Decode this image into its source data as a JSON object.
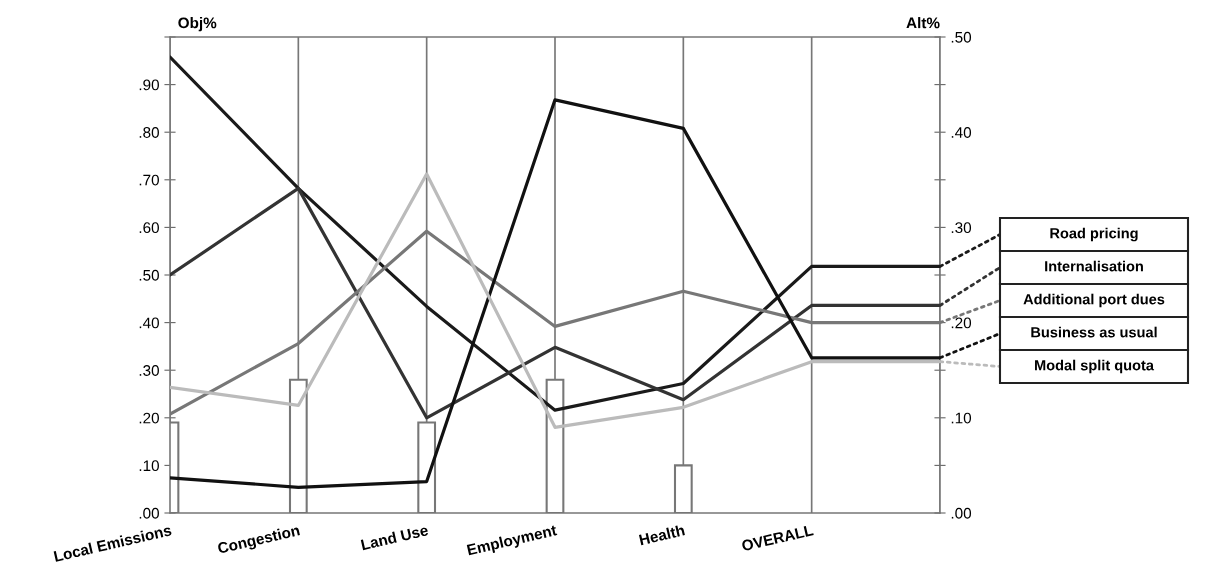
{
  "chart_data": {
    "type": "line",
    "categories": [
      "Local Emissions",
      "Congestion",
      "Land Use",
      "Employment",
      "Health",
      "OVERALL",
      null
    ],
    "ylabel": "Obj%",
    "y2label": "Alt%",
    "ylim": [
      0,
      1
    ],
    "yticks": [
      {
        "value": 0,
        "label": ".00"
      },
      {
        "value": 0.1,
        "label": ".10"
      },
      {
        "value": 0.2,
        "label": ".20"
      },
      {
        "value": 0.3,
        "label": ".30"
      },
      {
        "value": 0.4,
        "label": ".40"
      },
      {
        "value": 0.5,
        "label": ".50"
      },
      {
        "value": 0.6,
        "label": ".60"
      },
      {
        "value": 0.7,
        "label": ".70"
      },
      {
        "value": 0.8,
        "label": ".80"
      },
      {
        "value": 0.9,
        "label": ".90"
      },
      {
        "value": 1,
        "label": null
      }
    ],
    "y2lim": [
      0,
      0.5
    ],
    "y2ticks": [
      {
        "value": 0,
        "label": ".00"
      },
      {
        "value": 0.05,
        "label": null
      },
      {
        "value": 0.1,
        "label": ".10"
      },
      {
        "value": 0.15,
        "label": null
      },
      {
        "value": 0.2,
        "label": ".20"
      },
      {
        "value": 0.25,
        "label": null
      },
      {
        "value": 0.3,
        "label": ".30"
      },
      {
        "value": 0.35,
        "label": null
      },
      {
        "value": 0.4,
        "label": ".40"
      },
      {
        "value": 0.45,
        "label": null
      },
      {
        "value": 0.5,
        "label": ".50"
      }
    ],
    "grid": "x",
    "legend": "right",
    "marker": "none",
    "line_style": "solid",
    "series": [
      {
        "type": "bar",
        "color": "#ffffff",
        "values": [
          0.19,
          0.28,
          0.19,
          0.28,
          0.1,
          null,
          null
        ]
      },
      {
        "name": "Road pricing",
        "color": "#1a1a1a",
        "axis": "y2",
        "values": [
          0.479,
          0.341,
          0.217,
          0.108,
          0.136,
          0.259,
          0.259
        ]
      },
      {
        "name": "Internalisation",
        "color": "#333333",
        "axis": "y2",
        "values": [
          0.25,
          0.341,
          0.1,
          0.174,
          0.119,
          0.218,
          0.218
        ]
      },
      {
        "name": "Additional port dues",
        "color": "#777777",
        "axis": "y2",
        "values": [
          0.104,
          0.178,
          0.296,
          0.196,
          0.233,
          0.2,
          0.2
        ]
      },
      {
        "name": "Business as usual",
        "color": "#111111",
        "axis": "y2",
        "values": [
          0.037,
          0.027,
          0.033,
          0.434,
          0.404,
          0.163,
          0.163
        ]
      },
      {
        "name": "Modal split quota",
        "color": "#bbbbbb",
        "axis": "y2",
        "values": [
          0.132,
          0.113,
          0.356,
          0.09,
          0.111,
          0.159,
          0.159
        ]
      }
    ]
  }
}
